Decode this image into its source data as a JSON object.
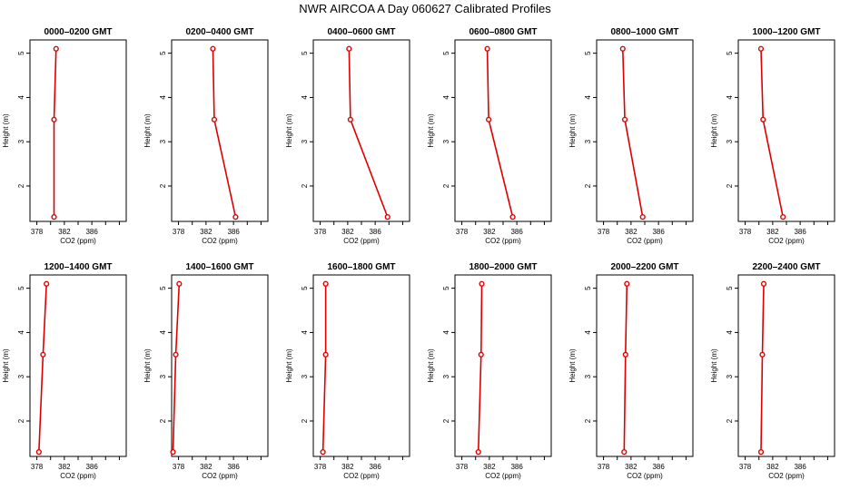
{
  "title": "NWR AIRCOA A  Day 060627  Calibrated Profiles",
  "chart_data": {
    "type": "line",
    "xlabel": "CO2 (ppm)",
    "ylabel": "Height (m)",
    "xlim": [
      377,
      391
    ],
    "ylim": [
      1.2,
      5.3
    ],
    "xticks": [
      378,
      382,
      386
    ],
    "yticks": [
      2,
      3,
      4,
      5
    ],
    "heights": [
      1.3,
      3.5,
      5.1
    ],
    "panels": [
      {
        "label": "0000–0200 GMT",
        "co2": [
          380.5,
          380.5,
          380.8
        ]
      },
      {
        "label": "0200–0400 GMT",
        "co2": [
          386.3,
          383.2,
          383.0
        ]
      },
      {
        "label": "0400–0600 GMT",
        "co2": [
          387.8,
          382.4,
          382.2
        ]
      },
      {
        "label": "0600–0800 GMT",
        "co2": [
          385.4,
          381.9,
          381.7
        ]
      },
      {
        "label": "0800–1000 GMT",
        "co2": [
          383.7,
          381.1,
          380.8
        ]
      },
      {
        "label": "1000–1200 GMT",
        "co2": [
          383.5,
          380.6,
          380.3
        ]
      },
      {
        "label": "1200–1400 GMT",
        "co2": [
          378.3,
          378.9,
          379.4
        ]
      },
      {
        "label": "1400–1600 GMT",
        "co2": [
          377.2,
          377.6,
          378.1
        ]
      },
      {
        "label": "1600–1800 GMT",
        "co2": [
          378.4,
          378.8,
          378.8
        ]
      },
      {
        "label": "1800–2000 GMT",
        "co2": [
          380.4,
          380.8,
          380.9
        ]
      },
      {
        "label": "2000–2200 GMT",
        "co2": [
          381.0,
          381.2,
          381.4
        ]
      },
      {
        "label": "2200–2400 GMT",
        "co2": [
          380.3,
          380.5,
          380.7
        ]
      }
    ]
  }
}
